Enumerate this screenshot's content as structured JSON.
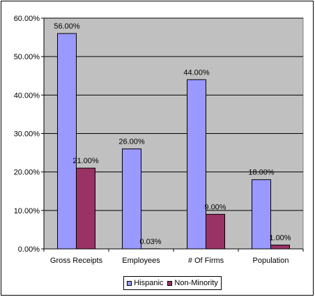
{
  "colors": {
    "plot_background": "#c0c0c0",
    "gridline": "#000000",
    "hispanic": "#9999ff",
    "non_minority": "#993366"
  },
  "chart_data": {
    "type": "bar",
    "categories": [
      "Gross Receipts",
      "Employees",
      "# Of Firms",
      "Population"
    ],
    "series": [
      {
        "name": "Hispanic",
        "values": [
          56.0,
          26.0,
          44.0,
          18.0
        ],
        "labels": [
          "56.00%",
          "26.00%",
          "44.00%",
          "18.00%"
        ]
      },
      {
        "name": "Non-Minority",
        "values": [
          21.0,
          0.03,
          9.0,
          1.0
        ],
        "labels": [
          "21.00%",
          "0.03%",
          "9.00%",
          "1.00%"
        ]
      }
    ],
    "ylim": [
      0,
      60
    ],
    "yticks": [
      "0.00%",
      "10.00%",
      "20.00%",
      "30.00%",
      "40.00%",
      "50.00%",
      "60.00%"
    ],
    "grid": true,
    "legend_position": "bottom"
  }
}
